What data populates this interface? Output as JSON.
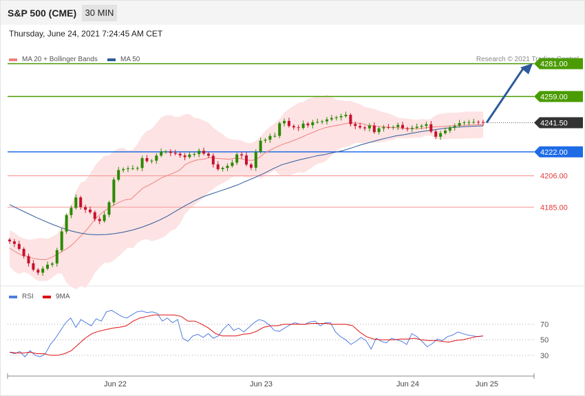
{
  "header": {
    "title": "S&P 500 (CME)",
    "timeframe": "30 MIN",
    "datetime": "Thursday, June 24, 2021 7:24:45 AM CET",
    "copyright": "Research © 2021 Trading Central"
  },
  "colors": {
    "ma20": "#f08080",
    "ma50": "#2c5a9c",
    "bollinger_fill": "#fde3e3",
    "resistance": "#4a9b00",
    "pivot": "#1e6be6",
    "support": "#e03a3a",
    "current": "#333333",
    "candle_up": "#2a8a00",
    "candle_down": "#c8102e",
    "rsi": "#4f7de0",
    "rsi_ma": "#e01010",
    "arrow": "#2c5a9c"
  },
  "chart_data": [
    {
      "type": "candlestick",
      "timeframe": "30 MIN",
      "legend": [
        "MA 20 + Bollinger Bands",
        "MA 50"
      ],
      "x_ticks": [
        "Jun 22",
        "Jun 23",
        "Jun 24",
        "Jun 25"
      ],
      "ylim": [
        4135,
        4296
      ],
      "levels": [
        {
          "value": 4281.0,
          "label": "4281.00",
          "kind": "resistance"
        },
        {
          "value": 4259.0,
          "label": "4259.00",
          "kind": "resistance"
        },
        {
          "value": 4241.5,
          "label": "4241.50",
          "kind": "current"
        },
        {
          "value": 4222.0,
          "label": "4222.00",
          "kind": "pivot"
        },
        {
          "value": 4206.0,
          "label": "4206.00",
          "kind": "support"
        },
        {
          "value": 4185.0,
          "label": "4185.00",
          "kind": "support"
        }
      ],
      "close": [
        4162.1,
        4160.4,
        4157.1,
        4152.3,
        4147.4,
        4143.1,
        4141.2,
        4143.9,
        4146.5,
        4147.3,
        4156.2,
        4168.7,
        4179.7,
        4184.5,
        4191.5,
        4185.0,
        4183.3,
        4181.6,
        4177.1,
        4175.7,
        4179.9,
        4188.2,
        4203.4,
        4209.8,
        4210.5,
        4210.9,
        4211.0,
        4211.2,
        4217.8,
        4215.8,
        4216.1,
        4219.5,
        4222.2,
        4222.2,
        4221.3,
        4220.7,
        4219.6,
        4218.5,
        4220.2,
        4220.5,
        4222.7,
        4220.8,
        4219.4,
        4213.6,
        4210.4,
        4211.2,
        4212.6,
        4214.8,
        4220.3,
        4219.6,
        4213.5,
        4211.4,
        4222.0,
        4229.5,
        4230.1,
        4232.6,
        4232.7,
        4241.1,
        4242.7,
        4239.3,
        4238.4,
        4238.0,
        4240.9,
        4239.8,
        4241.8,
        4242.1,
        4242.4,
        4243.7,
        4244.6,
        4245.1,
        4245.9,
        4246.8,
        4240.6,
        4239.3,
        4238.3,
        4237.7,
        4239.6,
        4235.2,
        4237.7,
        4238.5,
        4238.3,
        4238.6,
        4240.0,
        4237.7,
        4237.3,
        4238.1,
        4238.8,
        4239.4,
        4240.5,
        4235.6,
        4232.1,
        4234.5,
        4236.2,
        4238.4,
        4239.4,
        4241.3,
        4241.7,
        4241.8,
        4242.0,
        4241.9,
        4241.5
      ],
      "ma20": [
        4157.6,
        4155.0,
        4152.8,
        4151.9,
        4150.6,
        4150.0,
        4149.8,
        4151.5,
        4153.8,
        4156.1,
        4158.8,
        4162.7,
        4166.8,
        4171.3,
        4176.7,
        4180.5,
        4183.6,
        4186.0,
        4188.2,
        4189.9,
        4190.4,
        4194.2,
        4197.9,
        4199.8,
        4202.1,
        4204.6,
        4206.2,
        4207.8,
        4209.8,
        4213.7,
        4215.5,
        4216.7,
        4217.1,
        4218.2,
        4217.7,
        4217.4,
        4217.0,
        4217.7,
        4217.5,
        4216.4,
        4216.3,
        4217.9,
        4221.1,
        4223.3,
        4225.3,
        4227.1,
        4228.4,
        4230.0,
        4231.6,
        4233.5,
        4235.1,
        4236.8,
        4238.2,
        4239.1,
        4239.7,
        4240.6,
        4241.3,
        4241.3,
        4241.0,
        4239.8,
        4239.4,
        4238.9,
        4238.6,
        4238.3,
        4238.1,
        4237.8,
        4237.6,
        4237.5,
        4237.8,
        4238.3,
        4238.7,
        4238.9,
        4239.2,
        4239.4,
        4239.6,
        4239.8,
        4240.0,
        4240.1,
        4240.2
      ],
      "ma50": [
        4186.7,
        4183.8,
        4181.0,
        4178.2,
        4175.6,
        4173.2,
        4171.0,
        4169.1,
        4167.7,
        4166.8,
        4166.5,
        4166.7,
        4167.3,
        4168.3,
        4169.7,
        4171.4,
        4173.6,
        4176.1,
        4179.0,
        4182.5,
        4185.9,
        4189.1,
        4191.8,
        4193.9,
        4195.8,
        4197.8,
        4199.9,
        4202.5,
        4204.9,
        4207.6,
        4210.6,
        4213.3,
        4215.0,
        4216.6,
        4217.9,
        4219.3,
        4220.3,
        4221.6,
        4222.8,
        4224.6,
        4226.6,
        4228.2,
        4229.8,
        4231.3,
        4232.6,
        4233.5,
        4234.6,
        4235.6,
        4236.4,
        4237.3,
        4238.0,
        4238.5,
        4238.9,
        4239.2,
        4239.4
      ]
    },
    {
      "type": "line",
      "indicator": "RSI",
      "legend": [
        "RSI",
        "9MA"
      ],
      "y_ticks": [
        70,
        50,
        30
      ],
      "ylim": [
        13,
        98
      ],
      "rsi": [
        34,
        32,
        35,
        28,
        36,
        30,
        28,
        32,
        44,
        52,
        62,
        72,
        78,
        66,
        76,
        72,
        68,
        77,
        74,
        86,
        88,
        84,
        80,
        78,
        82,
        86,
        87,
        85,
        86,
        84,
        74,
        78,
        72,
        76,
        52,
        48,
        55,
        57,
        53,
        58,
        52,
        55,
        64,
        70,
        62,
        65,
        60,
        66,
        72,
        76,
        74,
        69,
        62,
        61,
        65,
        69,
        72,
        70,
        70,
        73,
        74,
        68,
        72,
        72,
        60,
        54,
        50,
        44,
        48,
        53,
        49,
        38,
        52,
        48,
        46,
        52,
        50,
        48,
        44,
        58,
        54,
        48,
        41,
        45,
        51,
        49,
        54,
        56,
        60,
        58,
        56,
        55,
        54,
        55
      ],
      "rsi_ma": [
        34,
        33,
        33,
        34,
        32,
        32,
        30,
        30,
        32,
        36,
        44,
        52,
        58,
        61,
        63,
        65,
        66,
        68,
        74,
        78,
        80,
        82,
        82,
        82,
        82,
        80,
        74,
        74,
        70,
        65,
        58,
        55,
        55,
        55,
        57,
        58,
        61,
        66,
        68,
        68,
        70,
        70,
        70,
        70,
        71,
        71,
        71,
        70,
        70,
        70,
        68,
        60,
        54,
        51,
        50,
        50,
        50,
        51,
        51,
        52,
        50,
        49,
        49,
        48,
        47,
        49,
        50,
        52,
        54,
        55
      ]
    }
  ]
}
